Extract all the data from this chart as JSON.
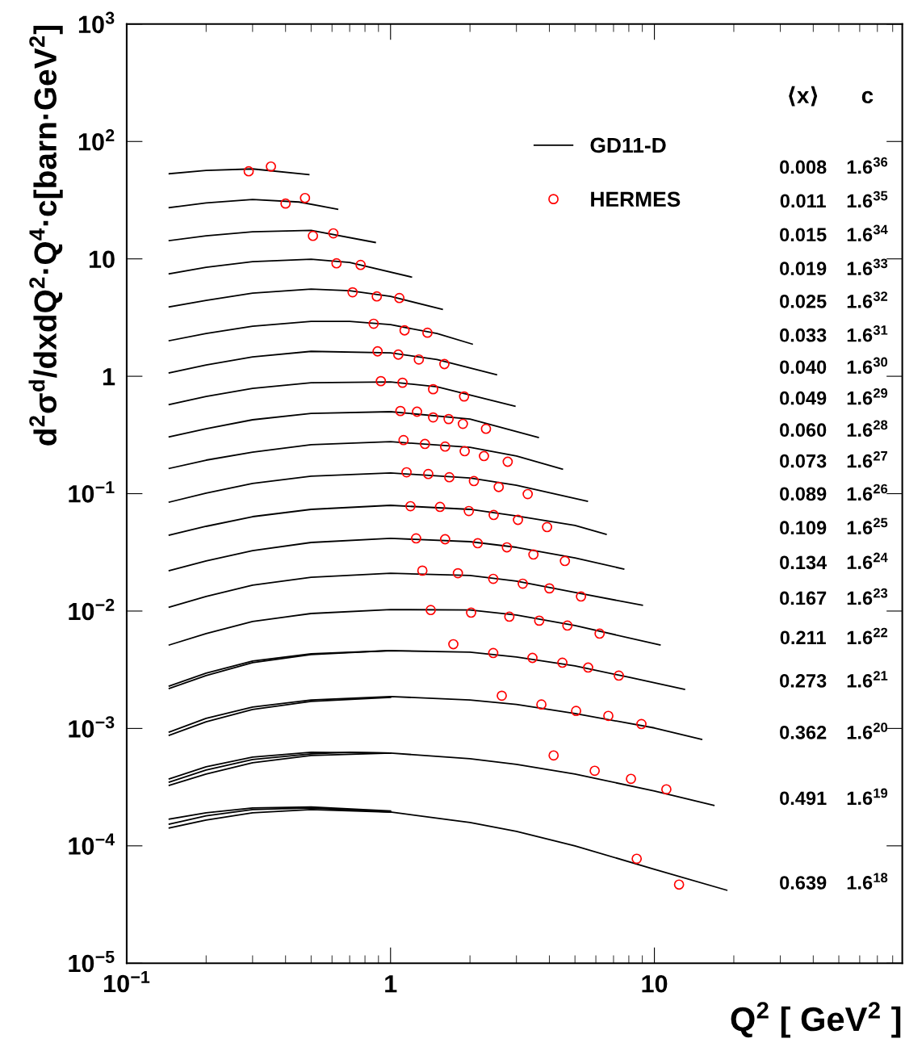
{
  "chart_data": {
    "type": "line",
    "xlabel": "Q$^{2}$ [ GeV$^{2}$ ]",
    "ylabel": "d$^{2}$σ$^{d}$/dxdQ$^{2}$·Q$^{4}$·c[barn·GeV$^{2}$]",
    "log": "xy",
    "xlim": [
      0.1,
      87
    ],
    "ylim": [
      1e-05,
      1000
    ],
    "xticks": [
      {
        "value": 0.1,
        "label": "10$^{−1}$"
      },
      1,
      10
    ],
    "yticks": [
      {
        "value": 1e-05,
        "label": "10$^{−5}$"
      },
      {
        "value": 0.0001,
        "label": "10$^{−4}$"
      },
      {
        "value": 0.001,
        "label": "10$^{−3}$"
      },
      {
        "value": 0.01,
        "label": "10$^{−2}$"
      },
      {
        "value": 0.1,
        "label": "10$^{−1}$"
      },
      1,
      10,
      {
        "value": 100,
        "label": "10$^{2}$"
      },
      {
        "value": 1000,
        "label": "10$^{3}$"
      }
    ],
    "grid": false,
    "legend": "top",
    "series": [
      {
        "name": "GD11-D",
        "color": "#000000",
        "x": [
          0.145,
          0.2,
          0.3,
          0.49
        ],
        "values": [
          53.1,
          56.6,
          58.4,
          52.3
        ]
      },
      {
        "type": "scatter",
        "name": "HERMES",
        "marker": "circle",
        "color": "#ff0000",
        "x": [
          0.29,
          0.352
        ],
        "values": [
          55.7,
          61.2
        ]
      },
      {
        "color": "#000000",
        "x": [
          0.145,
          0.2,
          0.3,
          0.45,
          0.63
        ],
        "values": [
          27.3,
          30.0,
          32.0,
          30.5,
          26.5
        ]
      },
      {
        "type": "scatter",
        "marker": "circle",
        "color": "#ff0000",
        "x": [
          0.4,
          0.474
        ],
        "values": [
          29.6,
          33.0
        ]
      },
      {
        "color": "#000000",
        "x": [
          0.145,
          0.2,
          0.3,
          0.5,
          0.875
        ],
        "values": [
          14.3,
          15.7,
          17.0,
          17.5,
          13.8
        ]
      },
      {
        "type": "scatter",
        "marker": "circle",
        "color": "#ff0000",
        "x": [
          0.508,
          0.607
        ],
        "values": [
          15.7,
          16.5
        ]
      },
      {
        "color": "#000000",
        "x": [
          0.145,
          0.2,
          0.3,
          0.5,
          0.7,
          1.2
        ],
        "values": [
          7.46,
          8.47,
          9.46,
          9.93,
          9.31,
          7.0
        ]
      },
      {
        "type": "scatter",
        "marker": "circle",
        "color": "#ff0000",
        "x": [
          0.624,
          0.77
        ],
        "values": [
          9.17,
          8.88
        ]
      },
      {
        "color": "#000000",
        "x": [
          0.145,
          0.2,
          0.3,
          0.5,
          0.7,
          1,
          1.57
        ],
        "values": [
          3.9,
          4.43,
          5.1,
          5.52,
          5.35,
          4.79,
          3.72
        ]
      },
      {
        "type": "scatter",
        "marker": "circle",
        "color": "#ff0000",
        "x": [
          0.718,
          0.887,
          1.08
        ],
        "values": [
          5.19,
          4.79,
          4.64
        ]
      },
      {
        "color": "#000000",
        "x": [
          0.145,
          0.2,
          0.3,
          0.5,
          0.7,
          1,
          1.5,
          2.04
        ],
        "values": [
          2.01,
          2.31,
          2.67,
          2.93,
          2.93,
          2.75,
          2.31,
          1.88
        ]
      },
      {
        "type": "scatter",
        "marker": "circle",
        "color": "#ff0000",
        "x": [
          0.863,
          1.13,
          1.38
        ],
        "values": [
          2.8,
          2.46,
          2.35
        ]
      },
      {
        "color": "#000000",
        "x": [
          0.145,
          0.2,
          0.3,
          0.5,
          1,
          1.5,
          2.52
        ],
        "values": [
          1.07,
          1.25,
          1.46,
          1.63,
          1.58,
          1.39,
          1.03
        ]
      },
      {
        "type": "scatter",
        "marker": "circle",
        "color": "#ff0000",
        "x": [
          0.893,
          1.07,
          1.28,
          1.6
        ],
        "values": [
          1.63,
          1.53,
          1.39,
          1.27
        ]
      },
      {
        "color": "#000000",
        "x": [
          0.145,
          0.2,
          0.3,
          0.5,
          1,
          1.5,
          2.96
        ],
        "values": [
          0.574,
          0.673,
          0.789,
          0.881,
          0.895,
          0.814,
          0.557
        ]
      },
      {
        "type": "scatter",
        "marker": "circle",
        "color": "#ff0000",
        "x": [
          0.919,
          1.11,
          1.45,
          1.9
        ],
        "values": [
          0.909,
          0.881,
          0.776,
          0.673
        ]
      },
      {
        "color": "#000000",
        "x": [
          0.145,
          0.2,
          0.3,
          0.5,
          1,
          2,
          3.63
        ],
        "values": [
          0.305,
          0.357,
          0.426,
          0.483,
          0.499,
          0.432,
          0.301
        ]
      },
      {
        "type": "scatter",
        "marker": "circle",
        "color": "#ff0000",
        "x": [
          1.09,
          1.26,
          1.45,
          1.66,
          1.88,
          2.3
        ],
        "values": [
          0.506,
          0.499,
          0.446,
          0.432,
          0.393,
          0.357
        ]
      },
      {
        "color": "#000000",
        "x": [
          0.145,
          0.2,
          0.3,
          0.5,
          1,
          2,
          3,
          4.48
        ],
        "values": [
          0.164,
          0.193,
          0.226,
          0.261,
          0.277,
          0.248,
          0.209,
          0.162
        ]
      },
      {
        "type": "scatter",
        "marker": "circle",
        "color": "#ff0000",
        "x": [
          1.12,
          1.35,
          1.61,
          1.91,
          2.26,
          2.78
        ],
        "values": [
          0.286,
          0.265,
          0.252,
          0.23,
          0.209,
          0.187
        ]
      },
      {
        "color": "#000000",
        "x": [
          0.145,
          0.2,
          0.3,
          0.5,
          1,
          2,
          3,
          5.57
        ],
        "values": [
          0.0847,
          0.101,
          0.122,
          0.141,
          0.15,
          0.136,
          0.118,
          0.0861
        ]
      },
      {
        "type": "scatter",
        "marker": "circle",
        "color": "#ff0000",
        "x": [
          1.15,
          1.39,
          1.67,
          2.07,
          2.57,
          3.31
        ],
        "values": [
          0.152,
          0.147,
          0.138,
          0.128,
          0.114,
          0.0992
        ]
      },
      {
        "color": "#000000",
        "x": [
          0.145,
          0.2,
          0.3,
          0.5,
          1,
          2,
          3,
          5,
          6.56
        ],
        "values": [
          0.0443,
          0.0527,
          0.0637,
          0.0735,
          0.0795,
          0.0735,
          0.0647,
          0.0536,
          0.045
        ]
      },
      {
        "type": "scatter",
        "marker": "circle",
        "color": "#ff0000",
        "x": [
          1.19,
          1.54,
          1.98,
          2.46,
          3.04,
          3.92
        ],
        "values": [
          0.0782,
          0.0771,
          0.0711,
          0.0658,
          0.0598,
          0.0519
        ]
      },
      {
        "color": "#000000",
        "x": [
          0.145,
          0.2,
          0.3,
          0.5,
          1,
          2,
          3,
          5,
          7.65
        ],
        "values": [
          0.0221,
          0.0267,
          0.0327,
          0.0384,
          0.0416,
          0.039,
          0.0349,
          0.0284,
          0.0228
        ]
      },
      {
        "type": "scatter",
        "marker": "circle",
        "color": "#ff0000",
        "x": [
          1.25,
          1.61,
          2.14,
          2.76,
          3.48,
          4.58
        ],
        "values": [
          0.0416,
          0.0409,
          0.0378,
          0.0349,
          0.0303,
          0.0267
        ]
      },
      {
        "color": "#000000",
        "x": [
          0.145,
          0.2,
          0.3,
          0.5,
          1,
          2,
          3,
          5,
          9
        ],
        "values": [
          0.0108,
          0.0133,
          0.0166,
          0.0194,
          0.021,
          0.0201,
          0.018,
          0.0144,
          0.0112
        ]
      },
      {
        "type": "scatter",
        "marker": "circle",
        "color": "#ff0000",
        "x": [
          1.32,
          1.8,
          2.45,
          3.17,
          4.0,
          5.27
        ],
        "values": [
          0.0221,
          0.021,
          0.0188,
          0.0171,
          0.0156,
          0.0133
        ]
      },
      {
        "color": "#000000",
        "x": [
          0.145,
          0.2,
          0.3,
          0.5,
          1,
          2,
          3,
          5,
          10.5
        ],
        "values": [
          0.00514,
          0.00642,
          0.00815,
          0.00953,
          0.0103,
          0.0102,
          0.00925,
          0.00752,
          0.00514
        ]
      },
      {
        "type": "scatter",
        "marker": "circle",
        "color": "#ff0000",
        "x": [
          1.42,
          2.02,
          2.82,
          3.66,
          4.68,
          6.2
        ],
        "values": [
          0.0102,
          0.00969,
          0.00895,
          0.00828,
          0.00752,
          0.00642
        ]
      },
      {
        "color": "#000000",
        "x": [
          0.145,
          0.2,
          0.3,
          0.5,
          1,
          2,
          3,
          5,
          8,
          13
        ],
        "values": [
          0.0023,
          0.00296,
          0.00375,
          0.00432,
          0.0046,
          0.00446,
          0.00406,
          0.00341,
          0.00273,
          0.00215
        ]
      },
      {
        "color": "#000000",
        "x": [
          0.145,
          0.2,
          0.3,
          0.5,
          1
        ],
        "values": [
          0.00219,
          0.00282,
          0.00363,
          0.00426,
          0.0046
        ]
      },
      {
        "type": "scatter",
        "marker": "circle",
        "color": "#ff0000",
        "x": [
          1.73,
          2.45,
          3.45,
          4.48,
          5.61,
          7.33
        ],
        "values": [
          0.00522,
          0.00439,
          0.00399,
          0.00363,
          0.0033,
          0.00282
        ]
      },
      {
        "color": "#000000",
        "x": [
          0.145,
          0.2,
          0.3,
          0.5,
          1,
          2,
          3,
          5,
          10,
          15.1
        ],
        "values": [
          0.000931,
          0.00122,
          0.00152,
          0.00175,
          0.00187,
          0.00175,
          0.0016,
          0.00134,
          0.00101,
          0.000808
        ]
      },
      {
        "color": "#000000",
        "x": [
          0.145,
          0.2,
          0.3,
          0.5,
          1
        ],
        "values": [
          0.000874,
          0.00114,
          0.00145,
          0.0017,
          0.00184
        ]
      },
      {
        "type": "scatter",
        "marker": "circle",
        "color": "#ff0000",
        "x": [
          2.64,
          3.73,
          5.05,
          6.69,
          8.93
        ],
        "values": [
          0.0019,
          0.0016,
          0.00141,
          0.00128,
          0.00109
        ]
      },
      {
        "color": "#000000",
        "x": [
          0.145,
          0.2,
          0.3,
          0.5,
          0.7,
          1,
          2,
          3,
          5,
          10,
          16.8
        ],
        "values": [
          0.000349,
          0.000443,
          0.000543,
          0.000608,
          0.000627,
          0.000617,
          0.000552,
          0.000494,
          0.000409,
          0.000293,
          0.000221
        ]
      },
      {
        "color": "#000000",
        "x": [
          0.145,
          0.2,
          0.3,
          0.5,
          1
        ],
        "values": [
          0.000327,
          0.000409,
          0.00051,
          0.000589,
          0.000617
        ]
      },
      {
        "color": "#000000",
        "x": [
          0.145,
          0.2,
          0.3,
          0.5,
          1
        ],
        "values": [
          0.000372,
          0.000472,
          0.00057,
          0.000627,
          0.000617
        ]
      },
      {
        "type": "scatter",
        "marker": "circle",
        "color": "#ff0000",
        "x": [
          4.15,
          5.94,
          8.15,
          11.1
        ],
        "values": [
          0.000589,
          0.000436,
          0.000372,
          0.000303
        ]
      },
      {
        "color": "#000000",
        "x": [
          0.145,
          0.2,
          0.3,
          0.5,
          1,
          2,
          3,
          5,
          10,
          18.8
        ],
        "values": [
          0.000153,
          0.00018,
          0.000204,
          0.00021,
          0.000194,
          0.000158,
          0.000133,
          0.0001,
          6.32e-05,
          4.19e-05
        ]
      },
      {
        "color": "#000000",
        "x": [
          0.145,
          0.2,
          0.3,
          0.5,
          1
        ],
        "values": [
          0.000142,
          0.000166,
          0.000191,
          0.000204,
          0.000194
        ]
      },
      {
        "color": "#000000",
        "x": [
          0.145,
          0.2,
          0.3,
          0.5,
          1
        ],
        "values": [
          0.000169,
          0.000191,
          0.00021,
          0.000214,
          0.000198
        ]
      },
      {
        "type": "scatter",
        "marker": "circle",
        "color": "#ff0000",
        "x": [
          8.57,
          12.4
        ],
        "values": [
          7.76e-05,
          4.68e-05
        ]
      }
    ],
    "annotations": [
      "⟨x⟩",
      "c",
      "0.008",
      "1.6$^{36}$",
      "0.011",
      "1.6$^{35}$",
      "0.015",
      "1.6$^{34}$",
      "0.019",
      "1.6$^{33}$",
      "0.025",
      "1.6$^{32}$",
      "0.033",
      "1.6$^{31}$",
      "0.040",
      "1.6$^{30}$",
      "0.049",
      "1.6$^{29}$",
      "0.060",
      "1.6$^{28}$",
      "0.073",
      "1.6$^{27}$",
      "0.089",
      "1.6$^{26}$",
      "0.109",
      "1.6$^{25}$",
      "0.134",
      "1.6$^{24}$",
      "0.167",
      "1.6$^{23}$",
      "0.211",
      "1.6$^{22}$",
      "0.273",
      "1.6$^{21}$",
      "0.362",
      "1.6$^{20}$",
      "0.491",
      "1.6$^{19}$",
      "0.639",
      "1.6$^{18}$"
    ]
  }
}
